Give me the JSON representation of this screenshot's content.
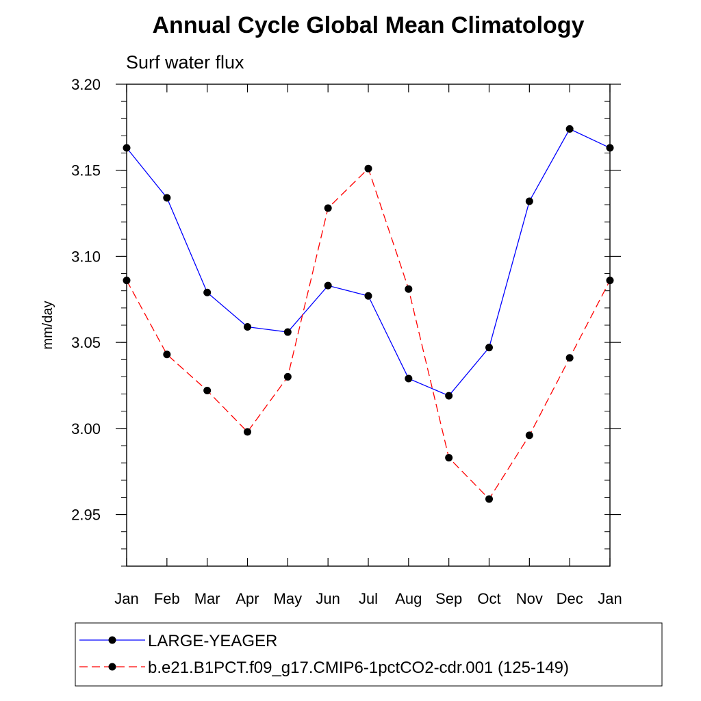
{
  "chart_data": {
    "type": "line",
    "title": "Annual Cycle Global Mean Climatology",
    "subtitle": "Surf water flux",
    "xlabel": "",
    "ylabel": "mm/day",
    "ylim": [
      2.92,
      3.2
    ],
    "yticks": [
      "3.20",
      "3.15",
      "3.10",
      "3.05",
      "3.00",
      "2.95"
    ],
    "categories": [
      "Jan",
      "Feb",
      "Mar",
      "Apr",
      "May",
      "Jun",
      "Jul",
      "Aug",
      "Sep",
      "Oct",
      "Nov",
      "Dec",
      "Jan"
    ],
    "series": [
      {
        "name": "LARGE-YEAGER",
        "color": "#0000ff",
        "dashed": false,
        "values": [
          3.163,
          3.134,
          3.079,
          3.059,
          3.056,
          3.083,
          3.077,
          3.029,
          3.019,
          3.047,
          3.132,
          3.174,
          3.163
        ]
      },
      {
        "name": "b.e21.B1PCT.f09_g17.CMIP6-1pctCO2-cdr.001 (125-149)",
        "color": "#ff0000",
        "dashed": true,
        "values": [
          3.086,
          3.043,
          3.022,
          2.998,
          3.03,
          3.128,
          3.151,
          3.081,
          2.983,
          2.959,
          2.996,
          3.041,
          3.086
        ]
      }
    ],
    "legend_position": "bottom"
  }
}
